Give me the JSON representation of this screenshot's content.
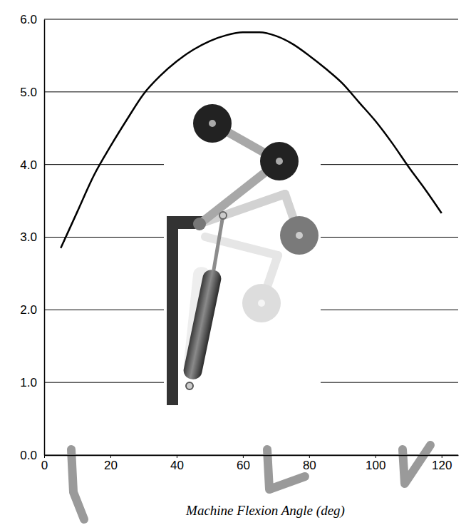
{
  "chart_data": {
    "type": "line",
    "xlabel": "Machine Flexion Angle (deg)",
    "x": [
      5,
      10,
      15,
      20,
      25,
      30,
      35,
      40,
      45,
      50,
      55,
      60,
      65,
      70,
      75,
      80,
      85,
      90,
      95,
      100,
      105,
      110,
      115,
      120
    ],
    "values": [
      2.85,
      3.35,
      3.85,
      4.25,
      4.62,
      4.97,
      5.22,
      5.42,
      5.58,
      5.7,
      5.78,
      5.82,
      5.82,
      5.77,
      5.66,
      5.5,
      5.32,
      5.12,
      4.86,
      4.6,
      4.3,
      3.97,
      3.66,
      3.33
    ],
    "color": "#000000",
    "xlim": [
      0,
      125
    ],
    "ylim": [
      0,
      6
    ],
    "xticks": [
      0,
      20,
      40,
      60,
      80,
      100,
      120
    ],
    "yticks": [
      {
        "value": 0,
        "label": "0.0"
      },
      {
        "value": 1,
        "label": "1.0"
      },
      {
        "value": 2,
        "label": "2.0"
      },
      {
        "value": 3,
        "label": "3.0"
      },
      {
        "value": 4,
        "label": "4.0"
      },
      {
        "value": 5,
        "label": "5.0"
      },
      {
        "value": 6,
        "label": "6.0"
      }
    ],
    "grid": true
  }
}
